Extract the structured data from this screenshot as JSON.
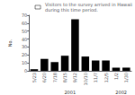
{
  "chart_data": {
    "type": "bar",
    "categories": [
      "5/23",
      "6/20",
      "7/18",
      "8/15",
      "9/12",
      "10/10",
      "11/7",
      "12/5",
      "1/2",
      "1/30"
    ],
    "values": [
      2,
      15,
      11,
      19,
      65,
      18,
      13,
      13,
      4,
      4
    ],
    "color": "#000000",
    "ylabel": "No.",
    "ylim": [
      0,
      70
    ],
    "yticks": [
      0,
      10,
      20,
      30,
      40,
      50,
      60,
      70
    ],
    "grid": false,
    "legend": "upper right",
    "legend_text": "Visitors to the survey arrived in Hawaii\nduring this time period.",
    "annotations": [
      "2001",
      "2002"
    ]
  }
}
